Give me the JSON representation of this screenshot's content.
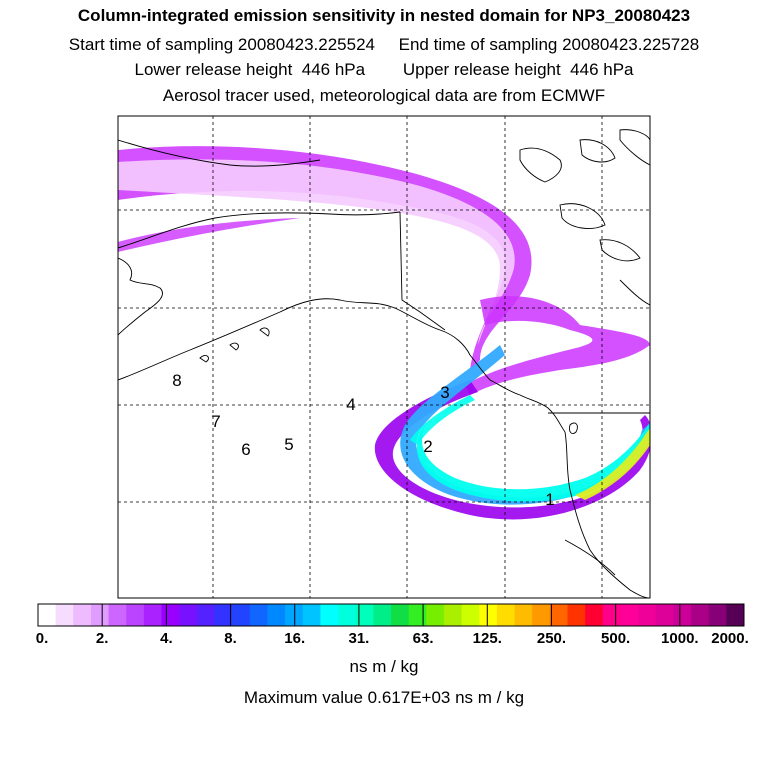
{
  "header": {
    "title": "Column-integrated emission sensitivity in nested domain for NP3_20080423",
    "sampling": "Start time of sampling 20080423.225524     End time of sampling 20080423.225728",
    "release": "Lower release height  446 hPa        Upper release height  446 hPa",
    "tracer": "Aerosol tracer used, meteorological data are from ECMWF"
  },
  "map": {
    "release_labels": [
      "1",
      "2",
      "3",
      "4",
      "5",
      "6",
      "7",
      "8"
    ],
    "plume_colors": {
      "outer": "#cc33ff",
      "light": "#f5ccff",
      "mid": "#9900ee",
      "core_blue": "#33aaff",
      "core_cyan": "#00ffee",
      "core_green": "#33ee66",
      "core_yellow": "#ddee22"
    }
  },
  "colorbar": {
    "tick_labels": [
      "0.",
      "2.",
      "4.",
      "8.",
      "16.",
      "31.",
      "63.",
      "125.",
      "250.",
      "500.",
      "1000.",
      "2000."
    ],
    "colors": [
      "#ffffff",
      "#f6dcff",
      "#eebbff",
      "#e09cff",
      "#cc66ff",
      "#bb44ff",
      "#aa22ff",
      "#9900ff",
      "#7711ff",
      "#5522ff",
      "#3333ff",
      "#2244ff",
      "#1166ff",
      "#0088ff",
      "#00a6ff",
      "#00c4ff",
      "#00ffff",
      "#00ffdd",
      "#00ffbb",
      "#00ee88",
      "#11dd44",
      "#33ee22",
      "#77ee00",
      "#aaee00",
      "#ccff00",
      "#ffff00",
      "#ffdd00",
      "#ffbb00",
      "#ff9900",
      "#ff6600",
      "#ff3300",
      "#ff0033",
      "#ff0088",
      "#ff0099",
      "#ee0099",
      "#dd0099",
      "#cc0099",
      "#aa0088",
      "#880077",
      "#550055"
    ]
  },
  "footer": {
    "units": "ns m / kg",
    "max_value": "Maximum value  0.617E+03 ns m / kg"
  }
}
